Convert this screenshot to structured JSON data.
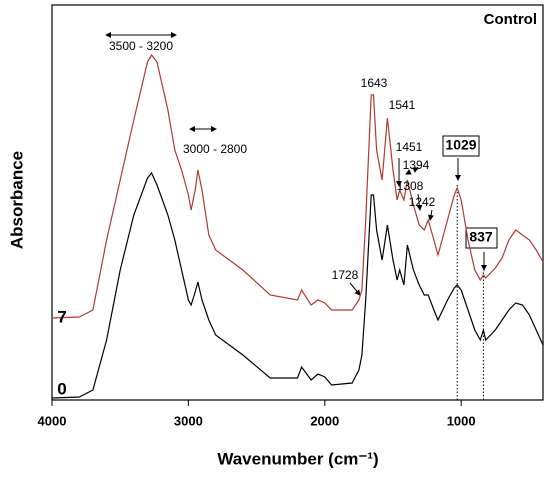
{
  "chart_data": {
    "type": "line",
    "title": "Control",
    "xlabel": "Wavenumber (cm⁻¹)",
    "ylabel": "Absorbance",
    "xlim": [
      4000,
      400
    ],
    "ylim": [
      0,
      395
    ],
    "xticks": [
      4000,
      3000,
      2000,
      1000
    ],
    "x": [
      4000,
      3800,
      3700,
      3600,
      3500,
      3400,
      3300,
      3270,
      3230,
      3150,
      3100,
      3050,
      3000,
      2980,
      2950,
      2930,
      2900,
      2850,
      2800,
      2600,
      2400,
      2200,
      2170,
      2100,
      2050,
      2000,
      1950,
      1800,
      1750,
      1728,
      1700,
      1660,
      1643,
      1620,
      1580,
      1541,
      1500,
      1470,
      1451,
      1420,
      1394,
      1350,
      1308,
      1270,
      1242,
      1200,
      1170,
      1100,
      1050,
      1029,
      1000,
      950,
      900,
      860,
      837,
      820,
      750,
      700,
      650,
      600,
      550,
      500,
      450,
      400
    ],
    "series": [
      {
        "name": "7",
        "color": "#b03a2e",
        "values": [
          82,
          83,
          90,
          160,
          220,
          280,
          338,
          345,
          338,
          290,
          250,
          230,
          205,
          190,
          210,
          230,
          210,
          165,
          150,
          130,
          105,
          100,
          110,
          95,
          100,
          97,
          90,
          90,
          100,
          110,
          180,
          305,
          305,
          250,
          220,
          282,
          230,
          200,
          210,
          200,
          220,
          195,
          175,
          170,
          180,
          160,
          145,
          180,
          205,
          212,
          200,
          160,
          130,
          120,
          125,
          122,
          132,
          142,
          160,
          170,
          165,
          160,
          150,
          138
        ]
      },
      {
        "name": "0",
        "color": "#000000",
        "values": [
          2,
          3,
          10,
          60,
          130,
          185,
          222,
          227,
          215,
          185,
          160,
          130,
          100,
          95,
          108,
          118,
          100,
          80,
          65,
          45,
          22,
          22,
          33,
          20,
          26,
          23,
          15,
          17,
          30,
          45,
          100,
          205,
          205,
          170,
          140,
          175,
          140,
          120,
          130,
          115,
          155,
          130,
          115,
          105,
          105,
          90,
          80,
          100,
          112,
          115,
          110,
          90,
          70,
          60,
          70,
          60,
          70,
          80,
          90,
          97,
          95,
          85,
          70,
          55
        ]
      }
    ],
    "reference_lines": [
      1029,
      837
    ],
    "annotations": [
      "3500 - 3200",
      "3000 - 2800",
      "1643",
      "1541",
      "1451",
      "1394",
      "1308",
      "1242",
      "1728",
      "1029",
      "837"
    ]
  }
}
